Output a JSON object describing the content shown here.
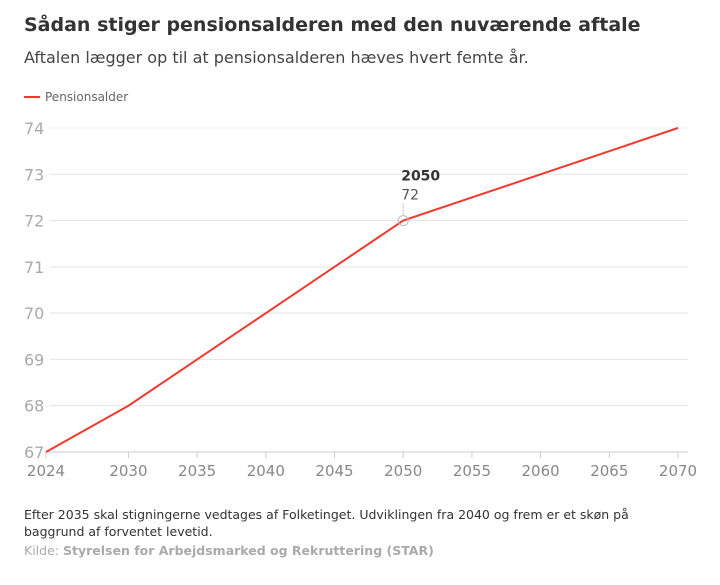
{
  "header": {
    "title": "Sådan stiger pensionsalderen med den nuværende aftale",
    "subtitle": "Aftalen lægger op til at pensionsalderen hæves hvert femte år."
  },
  "chart_data": {
    "type": "line",
    "title": "Sådan stiger pensionsalderen med den nuværende aftale",
    "series": [
      {
        "name": "Pensionsalder",
        "color": "#ef3a2f",
        "x": [
          2024,
          2030,
          2035,
          2040,
          2045,
          2050,
          2060,
          2070
        ],
        "values": [
          67,
          68,
          69,
          70,
          71,
          72,
          73,
          74
        ]
      }
    ],
    "xlim": [
      2024,
      2070
    ],
    "ylim": [
      67,
      74
    ],
    "x_ticks": [
      "2024",
      "2030",
      "2035",
      "2040",
      "2045",
      "2050",
      "2055",
      "2060",
      "2065",
      "2070"
    ],
    "y_ticks": [
      "67",
      "68",
      "69",
      "70",
      "71",
      "72",
      "73",
      "74"
    ],
    "grid": true,
    "legend": "top-left",
    "annotation": {
      "label": "2050",
      "value": "72",
      "x": 2050,
      "y": 72
    }
  },
  "footer": {
    "note": "Efter 2035 skal stigningerne vedtages af Folketinget. Udviklingen fra 2040 og frem er et skøn på baggrund af forventet levetid.",
    "source_label": "Kilde:",
    "source": "Styrelsen for Arbejdsmarked og Rekruttering (STAR)"
  }
}
